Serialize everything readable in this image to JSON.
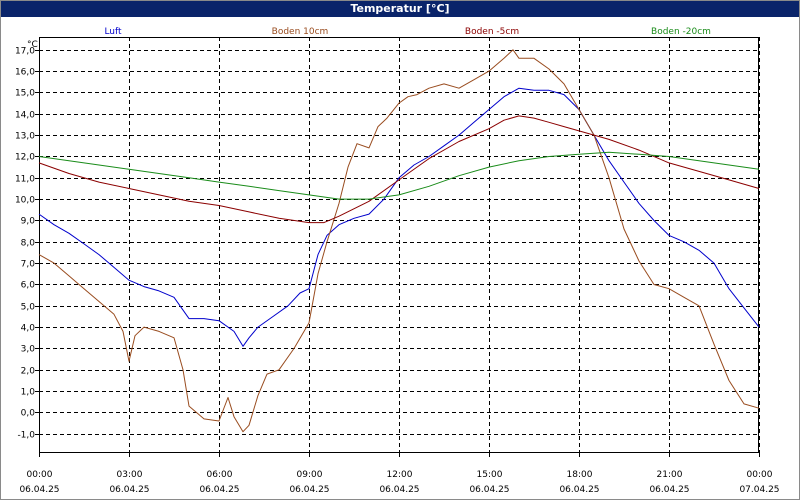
{
  "window": {
    "title": "Temperatur [°C]"
  },
  "chart_data": {
    "type": "line",
    "title": "Temperatur [°C]",
    "ylabel": "°C",
    "ylim": [
      -1.9,
      17.6
    ],
    "yticks": [
      "-1,0",
      "0,0",
      "1,0",
      "2,0",
      "3,0",
      "4,0",
      "5,0",
      "6,0",
      "7,0",
      "8,0",
      "9,0",
      "10,0",
      "11,0",
      "12,0",
      "13,0",
      "14,0",
      "15,0",
      "16,0",
      "17,0"
    ],
    "yvalues": [
      -1,
      0,
      1,
      2,
      3,
      4,
      5,
      6,
      7,
      8,
      9,
      10,
      11,
      12,
      13,
      14,
      15,
      16,
      17
    ],
    "xlim": [
      0,
      24
    ],
    "xticks": [
      {
        "x": 0,
        "time": "00:00",
        "date": "06.04.25"
      },
      {
        "x": 3,
        "time": "03:00",
        "date": "06.04.25"
      },
      {
        "x": 6,
        "time": "06:00",
        "date": "06.04.25"
      },
      {
        "x": 9,
        "time": "09:00",
        "date": "06.04.25"
      },
      {
        "x": 12,
        "time": "12:00",
        "date": "06.04.25"
      },
      {
        "x": 15,
        "time": "15:00",
        "date": "06.04.25"
      },
      {
        "x": 18,
        "time": "18:00",
        "date": "06.04.25"
      },
      {
        "x": 21,
        "time": "21:00",
        "date": "06.04.25"
      },
      {
        "x": 24,
        "time": "00:00",
        "date": "07.04.25"
      }
    ],
    "grid": true,
    "legend_position": "top",
    "series": [
      {
        "name": "Luft",
        "color": "#0000cc",
        "points": [
          [
            0,
            9.3
          ],
          [
            0.5,
            8.8
          ],
          [
            1,
            8.4
          ],
          [
            1.5,
            7.9
          ],
          [
            2,
            7.4
          ],
          [
            2.5,
            6.8
          ],
          [
            3,
            6.2
          ],
          [
            3.5,
            5.9
          ],
          [
            4,
            5.7
          ],
          [
            4.5,
            5.4
          ],
          [
            5,
            4.4
          ],
          [
            5.5,
            4.4
          ],
          [
            6,
            4.3
          ],
          [
            6.5,
            3.8
          ],
          [
            6.8,
            3.1
          ],
          [
            7,
            3.5
          ],
          [
            7.3,
            4.0
          ],
          [
            7.8,
            4.5
          ],
          [
            8.3,
            5.0
          ],
          [
            8.7,
            5.6
          ],
          [
            9,
            5.8
          ],
          [
            9.3,
            7.4
          ],
          [
            9.6,
            8.3
          ],
          [
            10,
            8.8
          ],
          [
            10.5,
            9.1
          ],
          [
            11,
            9.3
          ],
          [
            11.5,
            10.0
          ],
          [
            12,
            11.0
          ],
          [
            12.5,
            11.6
          ],
          [
            13,
            12.0
          ],
          [
            13.5,
            12.5
          ],
          [
            14,
            13.0
          ],
          [
            14.5,
            13.6
          ],
          [
            15,
            14.2
          ],
          [
            15.5,
            14.8
          ],
          [
            16,
            15.2
          ],
          [
            16.5,
            15.1
          ],
          [
            17,
            15.1
          ],
          [
            17.5,
            14.9
          ],
          [
            18,
            14.2
          ],
          [
            18.5,
            13.0
          ],
          [
            19,
            11.8
          ],
          [
            19.5,
            10.8
          ],
          [
            20,
            9.8
          ],
          [
            20.5,
            9.0
          ],
          [
            21,
            8.3
          ],
          [
            21.5,
            8.0
          ],
          [
            22,
            7.6
          ],
          [
            22.5,
            7.0
          ],
          [
            23,
            5.8
          ],
          [
            23.5,
            4.9
          ],
          [
            24,
            4.0
          ]
        ]
      },
      {
        "name": "Boden 10cm",
        "color": "#994c1f",
        "points": [
          [
            0,
            7.4
          ],
          [
            0.5,
            7.0
          ],
          [
            1,
            6.4
          ],
          [
            1.5,
            5.8
          ],
          [
            2,
            5.2
          ],
          [
            2.5,
            4.6
          ],
          [
            2.8,
            3.8
          ],
          [
            3,
            2.4
          ],
          [
            3.2,
            3.6
          ],
          [
            3.5,
            4.0
          ],
          [
            4,
            3.8
          ],
          [
            4.5,
            3.5
          ],
          [
            4.8,
            2.0
          ],
          [
            5,
            0.3
          ],
          [
            5.5,
            -0.3
          ],
          [
            6,
            -0.4
          ],
          [
            6.3,
            0.7
          ],
          [
            6.5,
            -0.2
          ],
          [
            6.8,
            -0.9
          ],
          [
            7,
            -0.6
          ],
          [
            7.3,
            0.8
          ],
          [
            7.6,
            1.8
          ],
          [
            8,
            2.0
          ],
          [
            8.5,
            3.0
          ],
          [
            9,
            4.2
          ],
          [
            9.3,
            6.5
          ],
          [
            9.6,
            8.0
          ],
          [
            10,
            9.8
          ],
          [
            10.3,
            11.5
          ],
          [
            10.6,
            12.6
          ],
          [
            11,
            12.4
          ],
          [
            11.3,
            13.4
          ],
          [
            11.6,
            13.8
          ],
          [
            12,
            14.5
          ],
          [
            12.3,
            14.8
          ],
          [
            12.6,
            14.9
          ],
          [
            13,
            15.2
          ],
          [
            13.5,
            15.4
          ],
          [
            14,
            15.2
          ],
          [
            14.5,
            15.6
          ],
          [
            15,
            16.0
          ],
          [
            15.5,
            16.6
          ],
          [
            15.8,
            17.0
          ],
          [
            16,
            16.6
          ],
          [
            16.5,
            16.6
          ],
          [
            17,
            16.1
          ],
          [
            17.5,
            15.4
          ],
          [
            18,
            14.2
          ],
          [
            18.5,
            13.0
          ],
          [
            19,
            11.0
          ],
          [
            19.5,
            8.6
          ],
          [
            20,
            7.1
          ],
          [
            20.5,
            6.0
          ],
          [
            21,
            5.8
          ],
          [
            21.5,
            5.4
          ],
          [
            22,
            5.0
          ],
          [
            22.5,
            3.2
          ],
          [
            23,
            1.5
          ],
          [
            23.5,
            0.4
          ],
          [
            24,
            0.2
          ]
        ]
      },
      {
        "name": "Boden -5cm",
        "color": "#8b0000",
        "points": [
          [
            0,
            11.7
          ],
          [
            1,
            11.2
          ],
          [
            2,
            10.8
          ],
          [
            3,
            10.5
          ],
          [
            4,
            10.2
          ],
          [
            5,
            9.9
          ],
          [
            6,
            9.7
          ],
          [
            7,
            9.4
          ],
          [
            8,
            9.1
          ],
          [
            9,
            8.9
          ],
          [
            9.5,
            8.9
          ],
          [
            10,
            9.2
          ],
          [
            11,
            9.9
          ],
          [
            12,
            10.9
          ],
          [
            13,
            11.9
          ],
          [
            14,
            12.7
          ],
          [
            15,
            13.3
          ],
          [
            15.5,
            13.7
          ],
          [
            16,
            13.9
          ],
          [
            16.5,
            13.8
          ],
          [
            17,
            13.6
          ],
          [
            17.5,
            13.4
          ],
          [
            18,
            13.2
          ],
          [
            18.5,
            13.0
          ],
          [
            19,
            12.8
          ],
          [
            20,
            12.3
          ],
          [
            21,
            11.7
          ],
          [
            22,
            11.3
          ],
          [
            23,
            10.9
          ],
          [
            24,
            10.5
          ]
        ]
      },
      {
        "name": "Boden -20cm",
        "color": "#1a8c1a",
        "points": [
          [
            0,
            12.0
          ],
          [
            1,
            11.8
          ],
          [
            2,
            11.6
          ],
          [
            3,
            11.4
          ],
          [
            4,
            11.2
          ],
          [
            5,
            11.0
          ],
          [
            6,
            10.8
          ],
          [
            7,
            10.6
          ],
          [
            8,
            10.4
          ],
          [
            9,
            10.2
          ],
          [
            10,
            10.0
          ],
          [
            11,
            10.0
          ],
          [
            12,
            10.2
          ],
          [
            13,
            10.6
          ],
          [
            14,
            11.1
          ],
          [
            15,
            11.5
          ],
          [
            16,
            11.8
          ],
          [
            17,
            12.0
          ],
          [
            18,
            12.1
          ],
          [
            19,
            12.2
          ],
          [
            20,
            12.1
          ],
          [
            21,
            12.0
          ],
          [
            22,
            11.8
          ],
          [
            23,
            11.6
          ],
          [
            24,
            11.4
          ]
        ]
      }
    ]
  }
}
